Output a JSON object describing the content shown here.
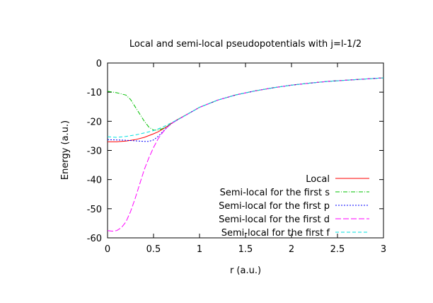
{
  "chart_data": {
    "type": "line",
    "title": "Local and semi-local pseudopotentials with j=l-1/2",
    "xlabel": "r (a.u.)",
    "ylabel": "Energy (a.u.)",
    "xlim": [
      0,
      3
    ],
    "ylim": [
      -60,
      0
    ],
    "xticks": [
      0,
      0.5,
      1,
      1.5,
      2,
      2.5,
      3
    ],
    "xtick_labels": [
      "0",
      "0.5",
      "1",
      "1.5",
      "2",
      "2.5",
      "3"
    ],
    "yticks": [
      0,
      -10,
      -20,
      -30,
      -40,
      -50,
      -60
    ],
    "ytick_labels": [
      "0",
      "-10",
      "-20",
      "-30",
      "-40",
      "-50",
      "-60"
    ],
    "grid": false,
    "legend_position": "bottom-right",
    "series": [
      {
        "name": "Local",
        "color": "#ff0000",
        "dash": "solid",
        "x": [
          0,
          0.1,
          0.2,
          0.3,
          0.4,
          0.5,
          0.55,
          0.6,
          0.65,
          0.7,
          0.75,
          0.8,
          0.9,
          1.0,
          1.2,
          1.4,
          1.6,
          1.8,
          2.0,
          2.2,
          2.4,
          2.6,
          2.8,
          3.0
        ],
        "y": [
          -27.0,
          -27.0,
          -26.8,
          -26.3,
          -25.5,
          -24.3,
          -23.6,
          -22.7,
          -21.7,
          -20.6,
          -19.6,
          -18.7,
          -17.0,
          -15.2,
          -12.7,
          -10.9,
          -9.6,
          -8.5,
          -7.6,
          -6.9,
          -6.3,
          -5.9,
          -5.5,
          -5.1
        ]
      },
      {
        "name": "Semi-local for the first s",
        "color": "#00c000",
        "dash": "dashdot",
        "x": [
          0,
          0.1,
          0.2,
          0.25,
          0.3,
          0.35,
          0.4,
          0.45,
          0.5,
          0.55,
          0.6,
          0.65,
          0.7,
          0.75,
          0.8,
          0.9,
          1.0,
          1.2,
          1.4,
          1.6,
          1.8,
          2.0,
          2.2,
          2.4,
          2.6,
          2.8,
          3.0
        ],
        "y": [
          -9.7,
          -10.2,
          -11.0,
          -12.5,
          -15.0,
          -17.5,
          -20.0,
          -22.0,
          -23.0,
          -23.0,
          -22.5,
          -21.7,
          -20.7,
          -19.7,
          -18.8,
          -17.0,
          -15.2,
          -12.7,
          -10.9,
          -9.6,
          -8.5,
          -7.6,
          -6.9,
          -6.3,
          -5.9,
          -5.5,
          -5.1
        ]
      },
      {
        "name": "Semi-local for the first p",
        "color": "#0000ff",
        "dash": "dotted",
        "x": [
          0,
          0.1,
          0.2,
          0.3,
          0.4,
          0.45,
          0.5,
          0.55,
          0.6,
          0.65,
          0.7,
          0.75,
          0.8,
          0.9,
          1.0,
          1.2,
          1.4,
          1.6,
          1.8,
          2.0,
          2.2,
          2.4,
          2.6,
          2.8,
          3.0
        ],
        "y": [
          -26.3,
          -26.4,
          -26.5,
          -26.7,
          -26.9,
          -26.9,
          -26.4,
          -25.2,
          -23.6,
          -22.0,
          -20.7,
          -19.7,
          -18.8,
          -17.0,
          -15.2,
          -12.7,
          -10.9,
          -9.6,
          -8.5,
          -7.6,
          -6.9,
          -6.3,
          -5.9,
          -5.5,
          -5.1
        ]
      },
      {
        "name": "Semi-local for the first d",
        "color": "#ff00ff",
        "dash": "longdash",
        "x": [
          0,
          0.05,
          0.1,
          0.15,
          0.2,
          0.25,
          0.3,
          0.35,
          0.4,
          0.45,
          0.5,
          0.55,
          0.6,
          0.65,
          0.7,
          0.75,
          0.8,
          0.9,
          1.0,
          1.2,
          1.4,
          1.6,
          1.8,
          2.0,
          2.2,
          2.4,
          2.6,
          2.8,
          3.0
        ],
        "y": [
          -57.5,
          -57.7,
          -57.5,
          -56.5,
          -54.5,
          -51.0,
          -46.5,
          -41.5,
          -36.5,
          -32.5,
          -29.0,
          -26.0,
          -23.8,
          -22.0,
          -20.7,
          -19.7,
          -18.8,
          -17.0,
          -15.2,
          -12.7,
          -10.9,
          -9.6,
          -8.5,
          -7.6,
          -6.9,
          -6.3,
          -5.9,
          -5.5,
          -5.1
        ]
      },
      {
        "name": "Semi-local for the first f",
        "color": "#00e0e0",
        "dash": "dashed",
        "x": [
          0,
          0.1,
          0.2,
          0.3,
          0.4,
          0.5,
          0.6,
          0.7,
          0.8,
          0.9,
          1.0,
          1.2,
          1.4,
          1.6,
          1.8,
          2.0,
          2.2,
          2.4,
          2.6,
          2.8,
          3.0
        ],
        "y": [
          -25.3,
          -25.5,
          -25.2,
          -24.7,
          -24.0,
          -23.2,
          -22.0,
          -20.4,
          -18.8,
          -17.0,
          -15.2,
          -12.7,
          -10.9,
          -9.6,
          -8.5,
          -7.6,
          -6.9,
          -6.3,
          -5.9,
          -5.5,
          -5.1
        ]
      }
    ]
  }
}
